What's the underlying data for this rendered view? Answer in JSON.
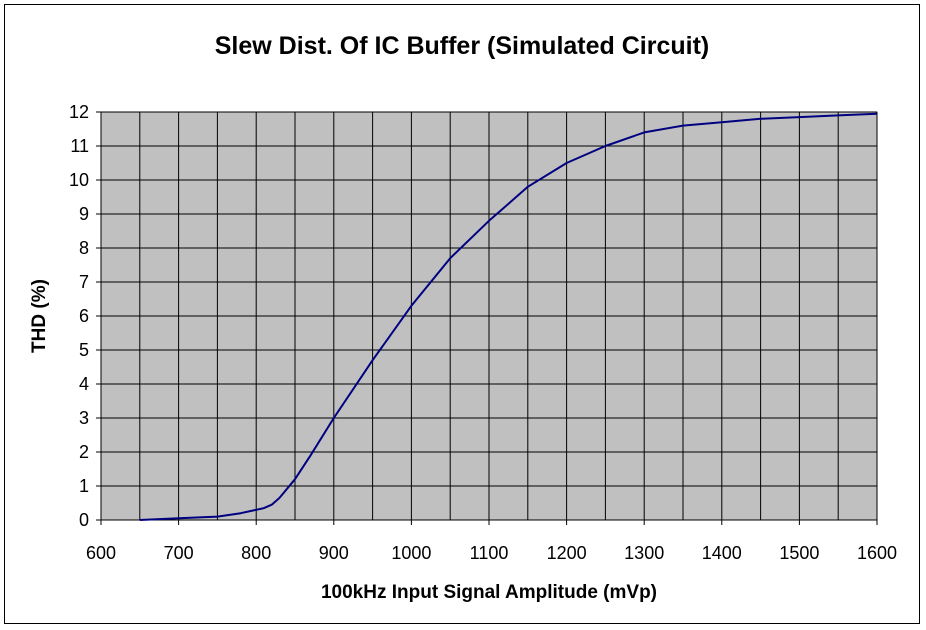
{
  "chart_data": {
    "type": "line",
    "title": "Slew Dist. Of IC Buffer (Simulated Circuit)",
    "xlabel": "100kHz Input Signal Amplitude (mVp)",
    "ylabel": "THD (%)",
    "xlim": [
      600,
      1600
    ],
    "ylim": [
      0,
      12
    ],
    "x_ticks": [
      "600",
      "700",
      "800",
      "900",
      "1000",
      "1100",
      "1200",
      "1300",
      "1400",
      "1500",
      "1600"
    ],
    "y_ticks": [
      "0",
      "1",
      "2",
      "3",
      "4",
      "5",
      "6",
      "7",
      "8",
      "9",
      "10",
      "11",
      "12"
    ],
    "grid": true,
    "legend": "none",
    "plot_background": "#c0c0c0",
    "line_color": "#000080",
    "series": [
      {
        "x": [
          650,
          700,
          750,
          780,
          800,
          810,
          820,
          830,
          850,
          870,
          900,
          950,
          1000,
          1050,
          1100,
          1150,
          1200,
          1250,
          1300,
          1350,
          1400,
          1450,
          1500,
          1550,
          1600
        ],
        "y": [
          0.0,
          0.05,
          0.1,
          0.2,
          0.3,
          0.35,
          0.45,
          0.65,
          1.2,
          1.9,
          3.0,
          4.7,
          6.3,
          7.7,
          8.8,
          9.8,
          10.5,
          11.0,
          11.4,
          11.6,
          11.7,
          11.8,
          11.85,
          11.9,
          11.95
        ]
      }
    ]
  }
}
